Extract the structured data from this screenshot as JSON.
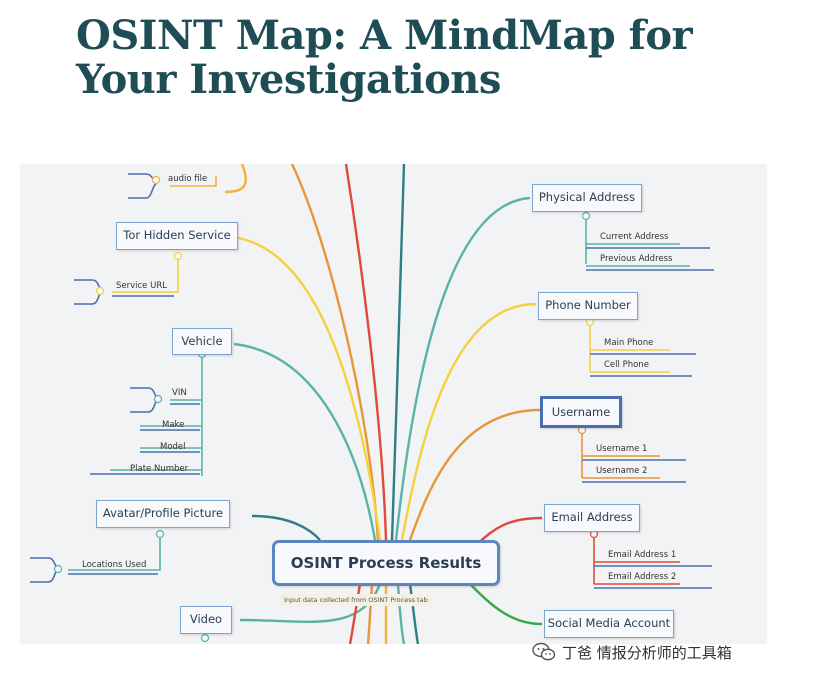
{
  "header": {
    "title": "OSINT Map: A MindMap for Your Investigations"
  },
  "mindmap": {
    "central": "OSINT Process Results",
    "central_note": "Input data collected from OSINT Process tab",
    "left_branches": [
      {
        "label": "Tor Hidden Service",
        "leaves": [
          "Service URL"
        ]
      },
      {
        "label": "Vehicle",
        "leaves": [
          "VIN",
          "Make",
          "Model",
          "Plate Number"
        ]
      },
      {
        "label": "Avatar/Profile Picture",
        "leaves": [
          "Locations Used"
        ]
      },
      {
        "label": "Video",
        "leaves": []
      }
    ],
    "top_left_leaf": "audio file",
    "right_branches": [
      {
        "label": "Physical Address",
        "leaves": [
          "Current Address",
          "Previous Address"
        ]
      },
      {
        "label": "Phone Number",
        "leaves": [
          "Main Phone",
          "Cell Phone"
        ]
      },
      {
        "label": "Username",
        "leaves": [
          "Username 1",
          "Username 2"
        ]
      },
      {
        "label": "Email Address",
        "leaves": [
          "Email Address 1",
          "Email Address 2"
        ]
      },
      {
        "label": "Social Media Account",
        "leaves": []
      }
    ]
  },
  "footer": {
    "text": "丁爸 情报分析师的工具箱"
  }
}
